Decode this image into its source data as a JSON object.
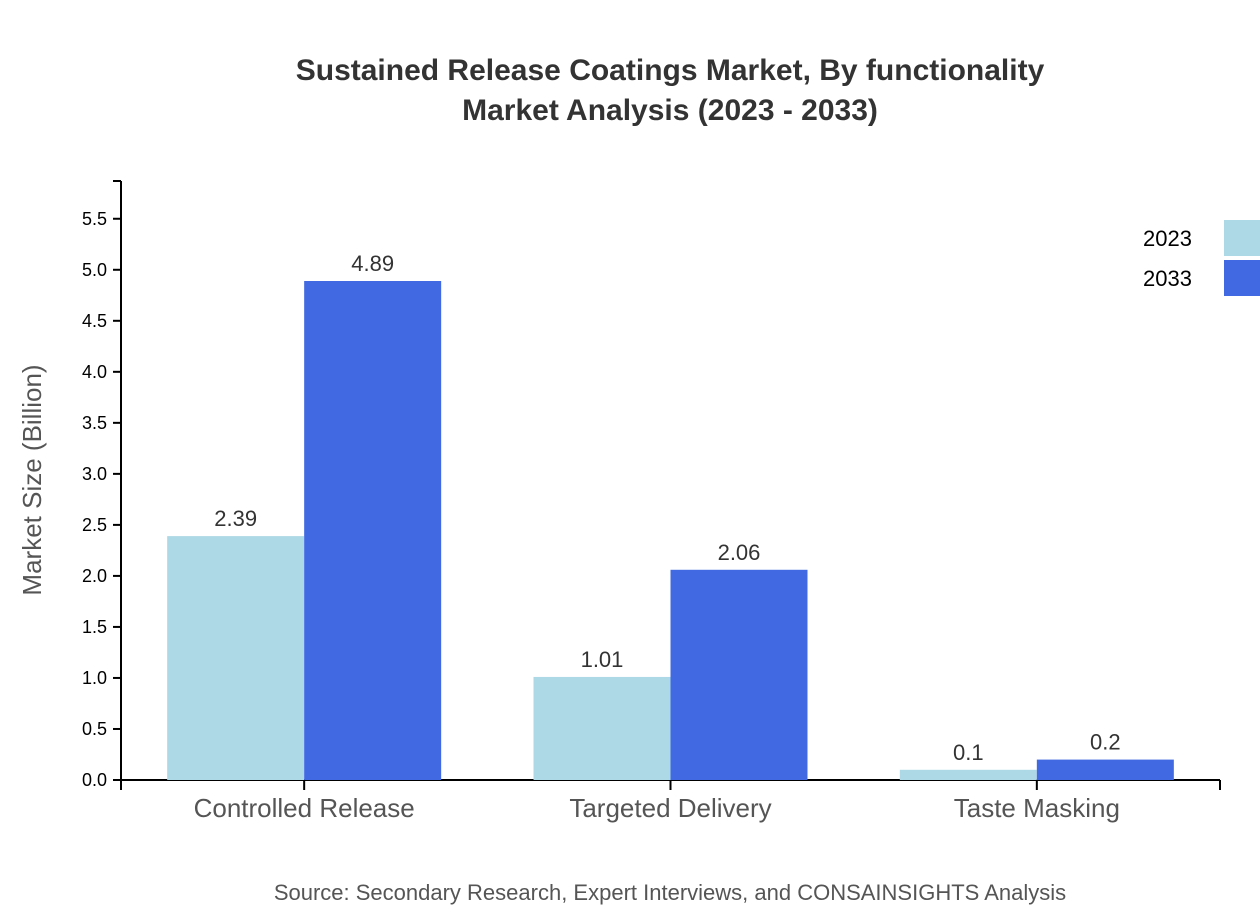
{
  "chart_data": {
    "type": "bar",
    "title": [
      "Sustained Release Coatings Market, By functionality",
      "Market Analysis (2023 - 2033)"
    ],
    "xlabel": "",
    "ylabel": "Market Size (Billion)",
    "categories": [
      "Controlled Release",
      "Targeted Delivery",
      "Taste Masking"
    ],
    "series": [
      {
        "name": "2023",
        "values": [
          2.39,
          1.01,
          0.1
        ],
        "color": "#ADD8E6"
      },
      {
        "name": "2033",
        "values": [
          4.89,
          2.06,
          0.2
        ],
        "color": "#4169E1"
      }
    ],
    "ylim": [
      0,
      5.87
    ],
    "yticks": [
      "0.0",
      "0.5",
      "1.0",
      "1.5",
      "2.0",
      "2.5",
      "3.0",
      "3.5",
      "4.0",
      "4.5",
      "5.0",
      "5.5"
    ],
    "grid": false,
    "legend": "top-right",
    "source": "Source: Secondary Research, Expert Interviews, and CONSAINSIGHTS Analysis"
  }
}
